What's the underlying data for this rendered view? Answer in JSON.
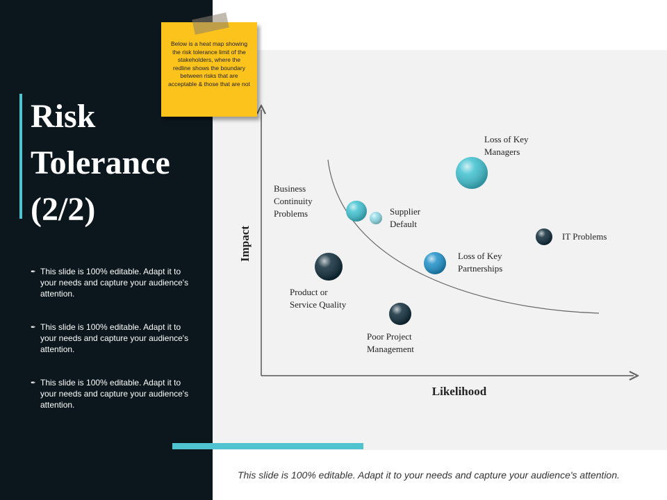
{
  "title_lines": [
    "Risk",
    "Tolerance",
    "(2/2)"
  ],
  "bullets": [
    {
      "icon": "pen-icon",
      "text": "This slide is 100% editable. Adapt it to your needs and capture your audience's attention."
    },
    {
      "icon": "pen-icon",
      "text": "This slide is 100% editable. Adapt it to your needs and capture your audience's attention."
    },
    {
      "icon": "pen-icon",
      "text": "This slide is 100% editable. Adapt it to your needs and capture your audience's attention."
    }
  ],
  "sticky_note": "Below is a heat map showing the risk tolerance limit of the stakeholders, where the redline shows the boundary between risks that are acceptable & those that are not",
  "chart": {
    "x_axis": "Likelihood",
    "y_axis": "Impact",
    "risks": [
      {
        "lines": [
          "Loss of Key",
          "Managers"
        ],
        "color": "#3fc1d0"
      },
      {
        "lines": [
          "Business",
          "Continuity",
          "Problems"
        ],
        "color": "#3fc1d0"
      },
      {
        "lines": [
          "Supplier",
          "Default"
        ],
        "color": "#8fdbe6"
      },
      {
        "lines": [
          "IT Problems"
        ],
        "color": "#0d2a38"
      },
      {
        "lines": [
          "Loss of Key",
          "Partnerships"
        ],
        "color": "#1e90c8"
      },
      {
        "lines": [
          "Product or",
          "Service Quality"
        ],
        "color": "#0d2a38"
      },
      {
        "lines": [
          "Poor  Project",
          "Management"
        ],
        "color": "#0d2a38"
      }
    ]
  },
  "footer": "This slide is 100% editable. Adapt it to your needs and capture your audience's attention."
}
